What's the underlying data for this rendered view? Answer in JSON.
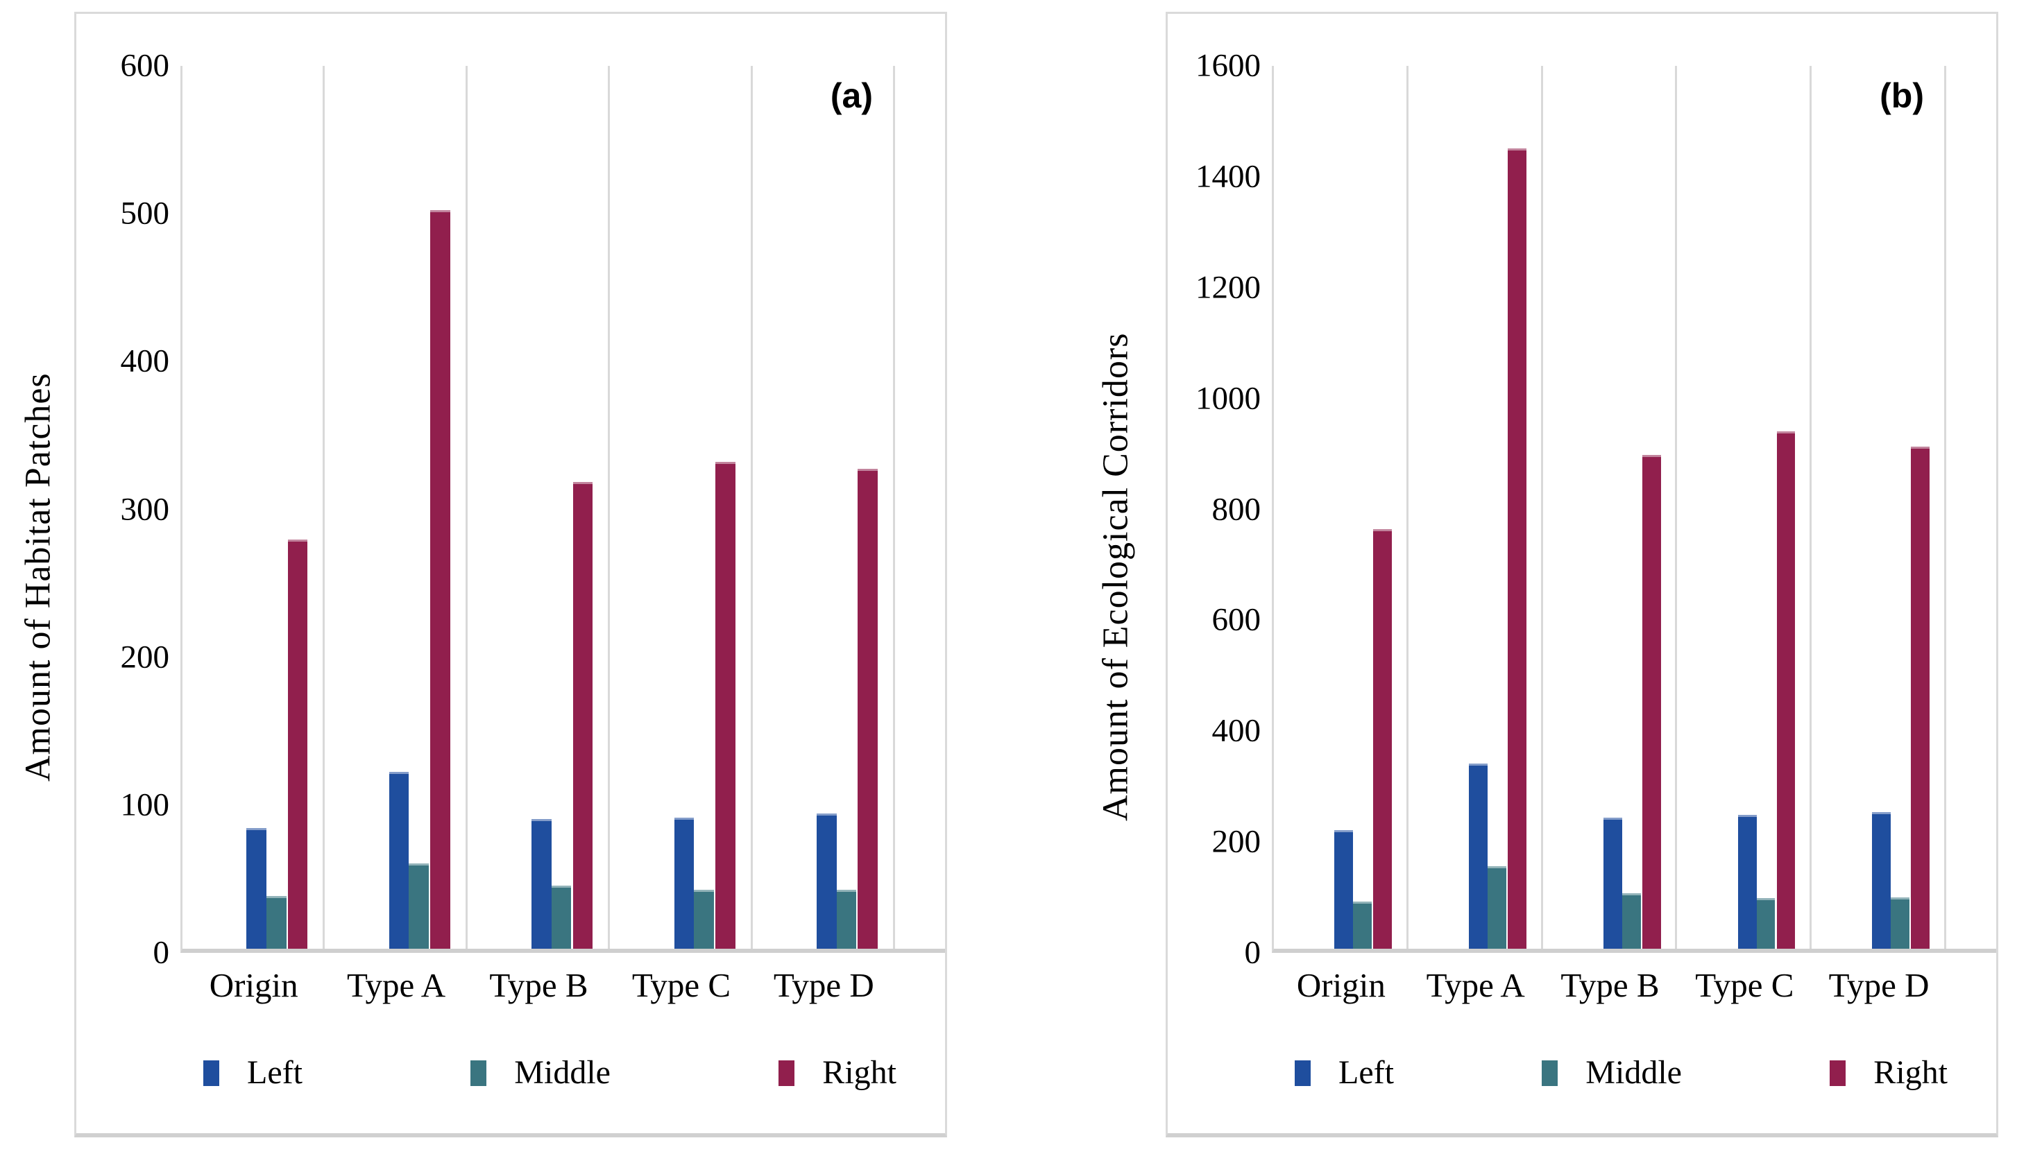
{
  "figure": {
    "panel_a": {
      "label": "(a)",
      "y_title": "Amount of Habitat Patches"
    },
    "panel_b": {
      "label": "(b)",
      "y_title": "Amount of Ecological Corridors"
    },
    "legend_labels": [
      "Left",
      "Middle",
      "Right"
    ]
  },
  "colors": {
    "left_series": "#1F4E9E",
    "middle_series": "#3A7580",
    "right_series": "#911F4D",
    "gridline": "#D9D9D9",
    "axis_line": "#CFCFCF",
    "panel_border": "#DADADA"
  },
  "chart_data": [
    {
      "type": "bar",
      "panel": "a",
      "title": "(a)",
      "y_title": "Amount of Habitat Patches",
      "xlabel": "",
      "ylim": [
        0,
        600
      ],
      "y_tick_step": 100,
      "y_ticks": [
        "600",
        "500",
        "400",
        "300",
        "200",
        "100",
        "0"
      ],
      "grid": "vertical-category-separators-only",
      "legend_position": "bottom",
      "categories": [
        "Origin",
        "Type A",
        "Type B",
        "Type C",
        "Type D"
      ],
      "series": [
        {
          "name": "Left",
          "color": "#1F4E9E",
          "values": [
            82,
            120,
            88,
            89,
            92
          ]
        },
        {
          "name": "Middle",
          "color": "#3A7580",
          "values": [
            36,
            58,
            43,
            40,
            40
          ]
        },
        {
          "name": "Right",
          "color": "#911F4D",
          "values": [
            278,
            502,
            317,
            331,
            326
          ]
        }
      ]
    },
    {
      "type": "bar",
      "panel": "b",
      "title": "(b)",
      "y_title": "Amount of Ecological Corridors",
      "xlabel": "",
      "ylim": [
        0,
        1600
      ],
      "y_tick_step": 200,
      "y_ticks": [
        "1600",
        "1400",
        "1200",
        "1000",
        "800",
        "600",
        "400",
        "200",
        "0"
      ],
      "grid": "vertical-category-separators-only",
      "legend_position": "bottom",
      "categories": [
        "Origin",
        "Type A",
        "Type B",
        "Type C",
        "Type D"
      ],
      "series": [
        {
          "name": "Left",
          "color": "#1F4E9E",
          "values": [
            215,
            335,
            238,
            242,
            248
          ]
        },
        {
          "name": "Middle",
          "color": "#3A7580",
          "values": [
            85,
            150,
            100,
            92,
            93
          ]
        },
        {
          "name": "Right",
          "color": "#911F4D",
          "values": [
            760,
            1450,
            895,
            938,
            910
          ]
        }
      ]
    }
  ]
}
